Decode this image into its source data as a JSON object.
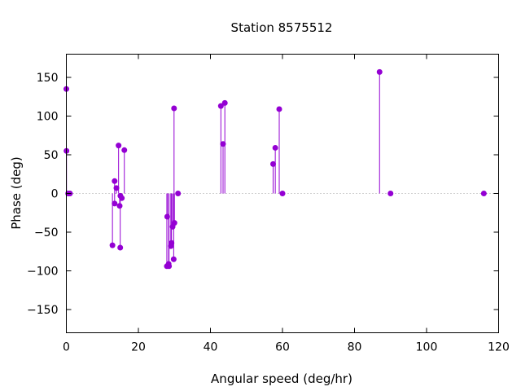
{
  "chart_data": {
    "type": "scatter",
    "style": "impulses with points",
    "title": "Station 8575512",
    "xlabel": "Angular speed (deg/hr)",
    "ylabel": "Phase (deg)",
    "xlim": [
      0,
      120
    ],
    "ylim": [
      -180,
      180
    ],
    "xticks": [
      0,
      20,
      40,
      60,
      80,
      100,
      120
    ],
    "yticks": [
      -150,
      -100,
      -50,
      0,
      50,
      100,
      150
    ],
    "zero_line": "dotted",
    "grid": false,
    "color": "#9400d3",
    "points": [
      {
        "x": 0.0,
        "y": 135
      },
      {
        "x": 0.04,
        "y": 55
      },
      {
        "x": 0.5,
        "y": 0
      },
      {
        "x": 1.0,
        "y": 0
      },
      {
        "x": 12.8,
        "y": -67
      },
      {
        "x": 13.4,
        "y": 16
      },
      {
        "x": 13.4,
        "y": -13
      },
      {
        "x": 13.9,
        "y": 7
      },
      {
        "x": 14.5,
        "y": 62
      },
      {
        "x": 14.8,
        "y": -16
      },
      {
        "x": 14.96,
        "y": -70
      },
      {
        "x": 15.0,
        "y": -3
      },
      {
        "x": 15.4,
        "y": -6
      },
      {
        "x": 16.1,
        "y": 56
      },
      {
        "x": 27.9,
        "y": -94
      },
      {
        "x": 28.0,
        "y": -30
      },
      {
        "x": 28.4,
        "y": -91
      },
      {
        "x": 28.5,
        "y": -94
      },
      {
        "x": 29.0,
        "y": -68
      },
      {
        "x": 29.2,
        "y": -64
      },
      {
        "x": 29.5,
        "y": -43
      },
      {
        "x": 29.8,
        "y": -85
      },
      {
        "x": 29.9,
        "y": 110
      },
      {
        "x": 30.0,
        "y": -38
      },
      {
        "x": 31.0,
        "y": 0
      },
      {
        "x": 42.9,
        "y": 113
      },
      {
        "x": 43.5,
        "y": 64
      },
      {
        "x": 44.0,
        "y": 117
      },
      {
        "x": 57.4,
        "y": 38
      },
      {
        "x": 58.0,
        "y": 59
      },
      {
        "x": 59.1,
        "y": 109
      },
      {
        "x": 60.0,
        "y": 0
      },
      {
        "x": 86.95,
        "y": 157
      },
      {
        "x": 90.0,
        "y": 0
      },
      {
        "x": 115.9,
        "y": 0
      }
    ]
  }
}
